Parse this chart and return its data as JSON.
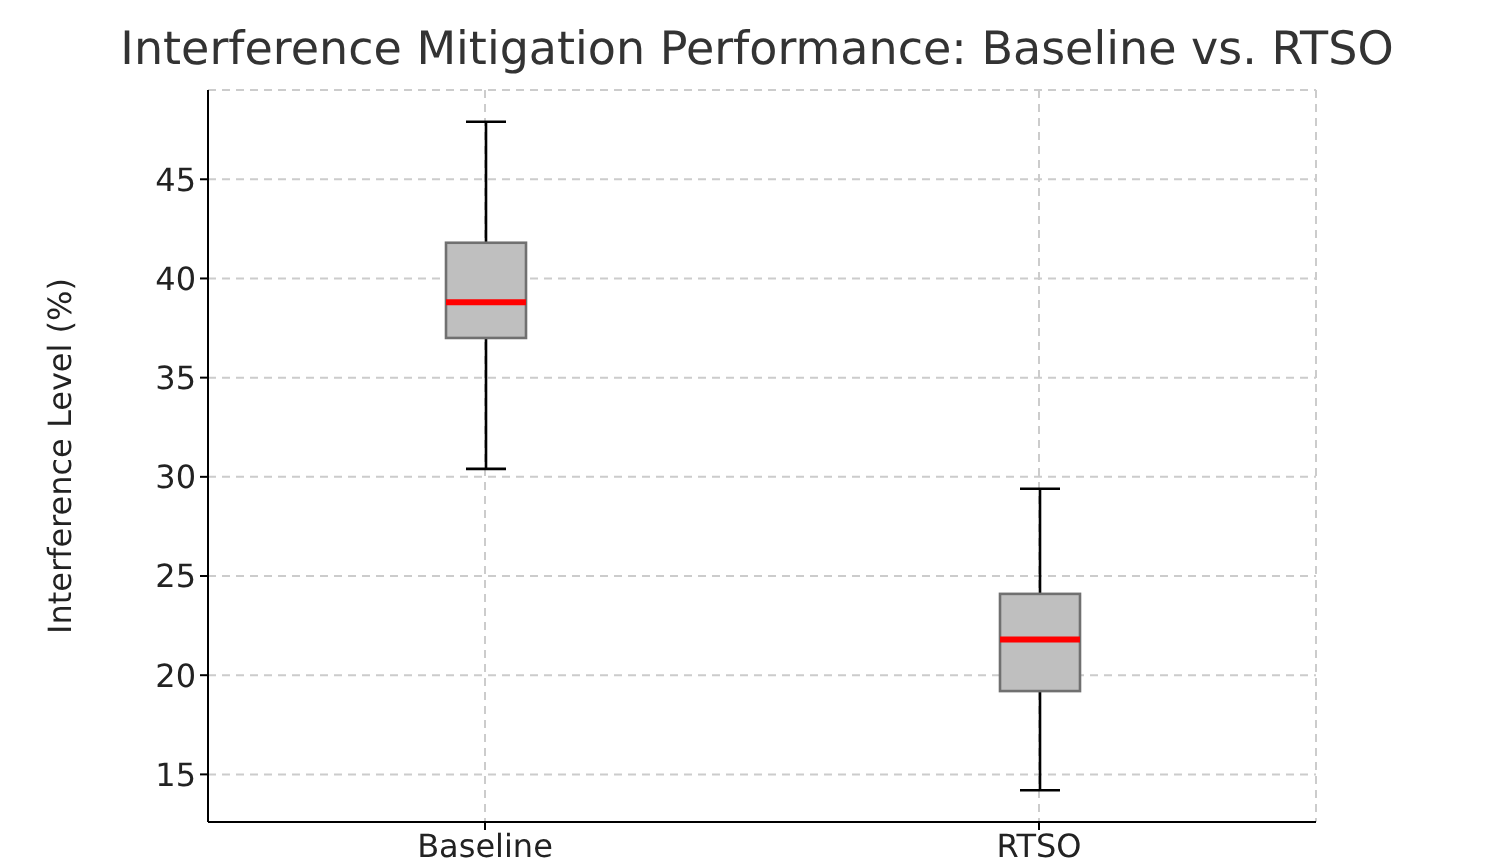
{
  "chart_data": {
    "type": "box",
    "title": "Interference Mitigation Performance: Baseline vs. RTSO",
    "ylabel": "Interference Level (%)",
    "categories": [
      "Baseline",
      "RTSO"
    ],
    "series": [
      {
        "color": "#bfbfbf",
        "boxes": [
          {
            "low": 30.4,
            "q1": 37.0,
            "median": 38.8,
            "q3": 41.8,
            "high": 47.9
          },
          {
            "low": 14.2,
            "q1": 19.2,
            "median": 21.8,
            "q3": 24.1,
            "high": 29.4
          }
        ]
      }
    ],
    "ylim": [
      12.6,
      49.5
    ],
    "yticks": [
      15,
      20,
      25,
      30,
      35,
      40,
      45
    ],
    "grid": true
  }
}
